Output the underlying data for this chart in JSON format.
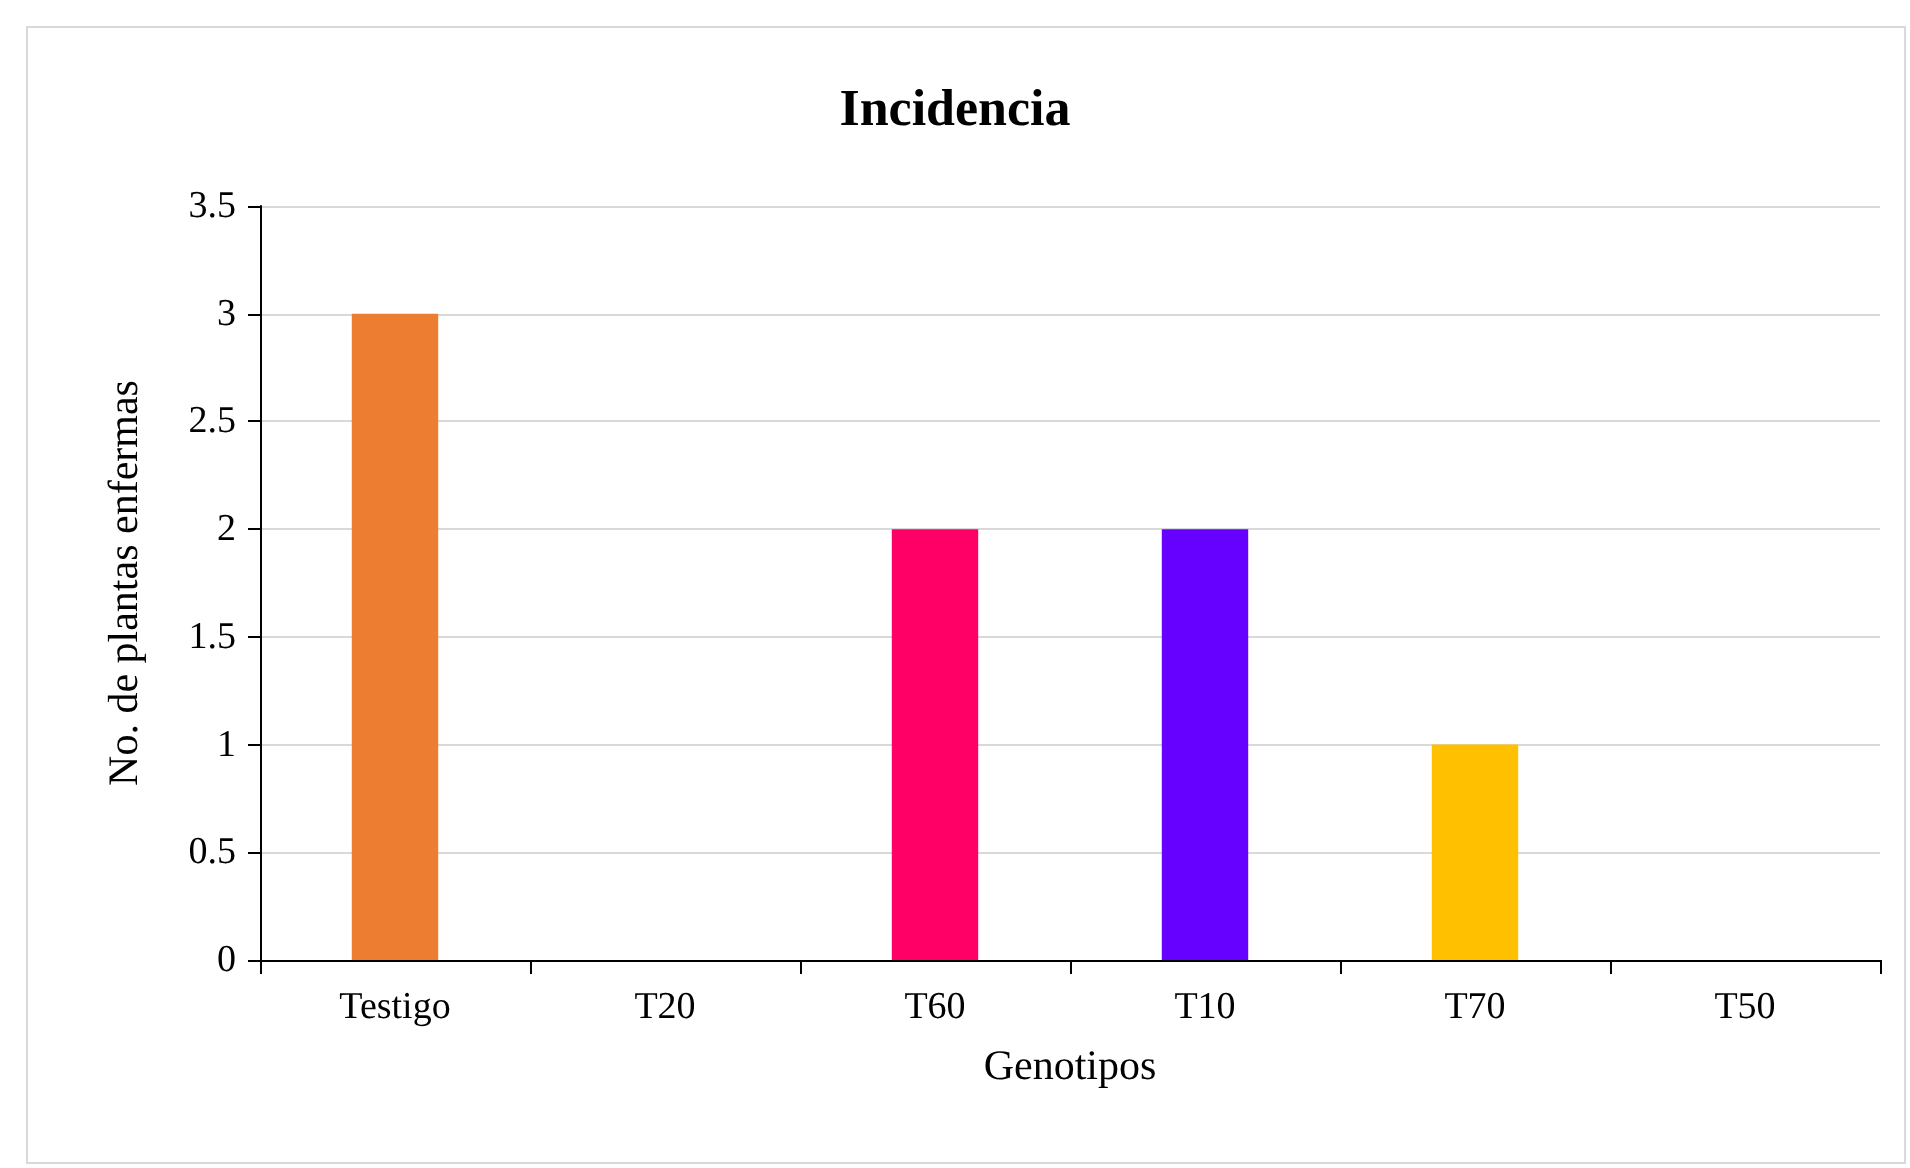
{
  "chart_data": {
    "type": "bar",
    "title": "Incidencia",
    "xlabel": "Genotipos",
    "ylabel": "No. de plantas enfermas",
    "categories": [
      "Testigo",
      "T20",
      "T60",
      "T10",
      "T70",
      "T50"
    ],
    "values": [
      3,
      0,
      2,
      2,
      1,
      0
    ],
    "colors": [
      "#ed7d31",
      null,
      "#ff0066",
      "#6600ff",
      "#ffc000",
      null
    ],
    "ylim": [
      0,
      3.5
    ],
    "yticks": [
      0,
      0.5,
      1,
      1.5,
      2,
      2.5,
      3,
      3.5
    ],
    "grid": "y"
  }
}
